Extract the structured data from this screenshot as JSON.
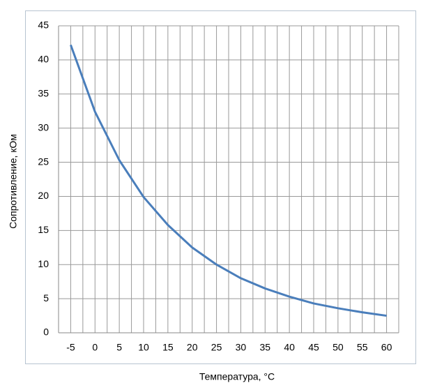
{
  "chart_data": {
    "type": "line",
    "x_label": "Температура,  °С",
    "y_label": "Сопротивление, кОм",
    "categories": [
      "-5",
      "0",
      "5",
      "10",
      "15",
      "20",
      "25",
      "30",
      "35",
      "40",
      "45",
      "50",
      "55",
      "60"
    ],
    "series": [
      {
        "name": "Сопротивление",
        "color": "#4a7ebb",
        "values": [
          42.2,
          32.4,
          25.3,
          19.9,
          15.8,
          12.5,
          10.0,
          8.0,
          6.5,
          5.3,
          4.3,
          3.6,
          3.0,
          2.5
        ]
      }
    ],
    "ylim": [
      0,
      45
    ],
    "yticks": [
      0,
      5,
      10,
      15,
      20,
      25,
      30,
      35,
      40,
      45
    ],
    "grid": true
  }
}
